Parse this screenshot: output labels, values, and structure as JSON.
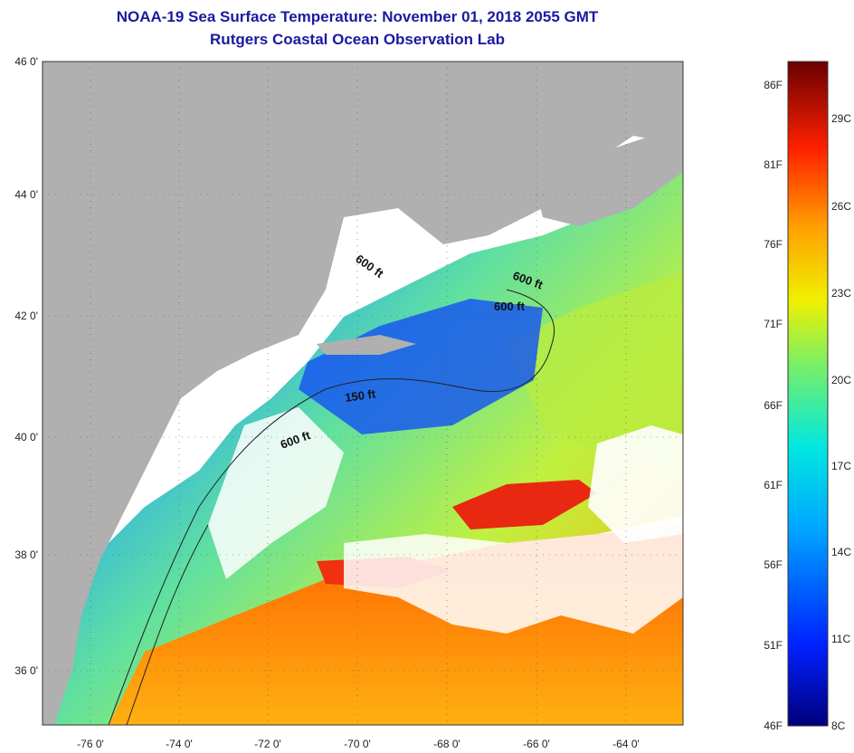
{
  "header": {
    "title": "NOAA-19 Sea Surface Temperature:  November 01, 2018 2055 GMT",
    "subtitle": "Rutgers Coastal Ocean Observation Lab"
  },
  "map": {
    "lat_labels": [
      "46 0'",
      "44 0'",
      "42 0'",
      "40 0'",
      "38 0'",
      "36 0'"
    ],
    "lon_labels": [
      "-76 0'",
      "-74 0'",
      "-72 0'",
      "-70 0'",
      "-68 0'",
      "-66 0'",
      "-64 0'"
    ],
    "isobath_labels": [
      "600 ft",
      "600 ft",
      "600 ft",
      "150 ft",
      "600 ft"
    ],
    "colors": {
      "land": "#b0b0b0",
      "cloud": "#ffffff",
      "cold": "#0000a0",
      "warm": "#e82000"
    }
  },
  "colorbar": {
    "fahrenheit": [
      "86F",
      "81F",
      "76F",
      "71F",
      "66F",
      "61F",
      "56F",
      "51F",
      "46F"
    ],
    "celsius": [
      "29C",
      "26C",
      "23C",
      "20C",
      "17C",
      "14C",
      "11C",
      "8C"
    ]
  }
}
